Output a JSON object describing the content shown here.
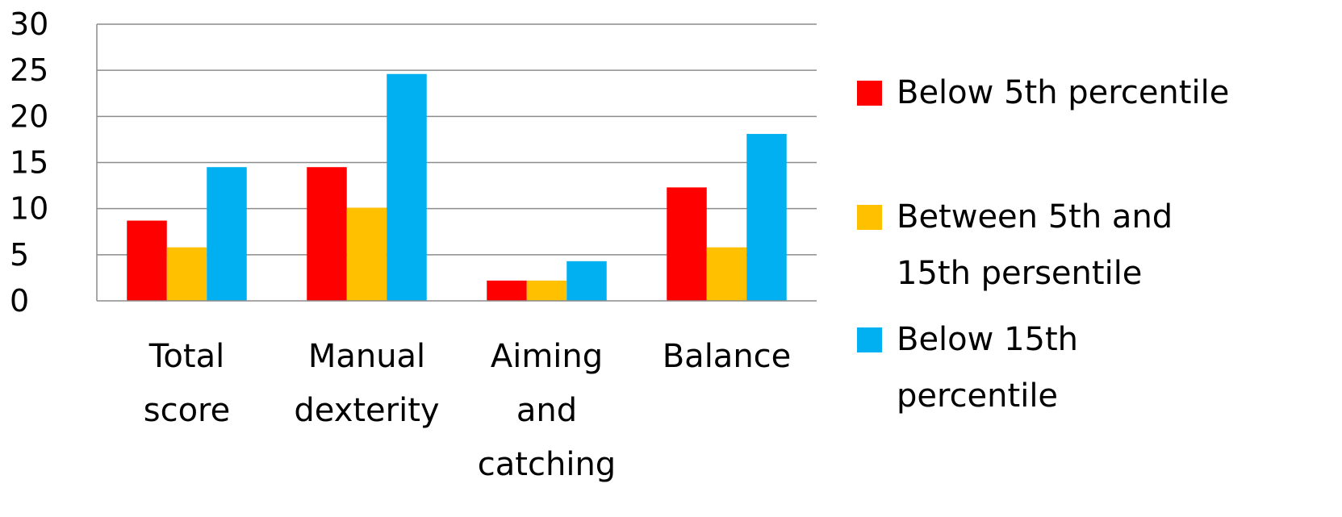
{
  "chart_data": {
    "type": "bar",
    "categories": [
      [
        "Total",
        "score"
      ],
      [
        "Manual",
        "dexterity"
      ],
      [
        "Aiming",
        "and",
        "catching"
      ],
      [
        "Balance"
      ]
    ],
    "series": [
      {
        "name": "Below 5th percentile",
        "values": [
          8.7,
          14.5,
          2.2,
          12.3
        ],
        "color": "#ff0000"
      },
      {
        "name": "Between 5th and 15th persentile",
        "values": [
          5.8,
          10.1,
          2.2,
          5.8
        ],
        "color": "#ffc000"
      },
      {
        "name": "Below 15th percentile",
        "values": [
          14.5,
          24.6,
          4.3,
          18.1
        ],
        "color": "#00b0f0"
      }
    ],
    "legend_lines": [
      [
        "Below 5th percentile"
      ],
      [
        "Between 5th and",
        "15th persentile"
      ],
      [
        "Below 15th",
        "percentile"
      ]
    ],
    "yticks": [
      "0",
      "5",
      "10",
      "15",
      "20",
      "25",
      "30"
    ],
    "ylim": [
      0,
      30
    ],
    "grid": true,
    "legend_position": "right",
    "title": "",
    "xlabel": "",
    "ylabel": ""
  }
}
